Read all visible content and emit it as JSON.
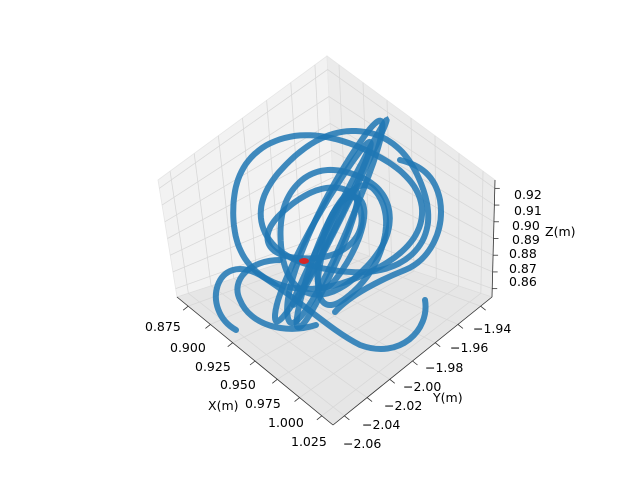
{
  "chart_data": {
    "type": "scatter",
    "projection": "3d",
    "title": "",
    "xlabel": "X(m)",
    "ylabel": "Y(m)",
    "zlabel": "Z(m)",
    "x_ticks": [
      "0.875",
      "0.900",
      "0.925",
      "0.950",
      "0.975",
      "1.000",
      "1.025"
    ],
    "y_ticks": [
      "−2.06",
      "−2.04",
      "−2.02",
      "−2.00",
      "−1.98",
      "−1.96",
      "−1.94"
    ],
    "z_ticks": [
      "0.86",
      "0.87",
      "0.88",
      "0.89",
      "0.90",
      "0.91",
      "0.92"
    ],
    "xlim": [
      0.865,
      1.03
    ],
    "ylim": [
      -2.065,
      -1.935
    ],
    "zlim": [
      0.855,
      0.925
    ],
    "grid": true,
    "series": [
      {
        "color": "#1f77b4",
        "marker": "o",
        "description_points": "dense trajectory of looping circles around center (0.95, -2.00, 0.885), radius ~0.05 m in X and Y",
        "center": [
          0.95,
          -2.0,
          0.885
        ],
        "radius_xy": [
          0.05,
          0.05
        ],
        "z_range": [
          0.86,
          0.915
        ]
      },
      {
        "color": "#d62728",
        "marker": "o",
        "points": [
          [
            0.95,
            -2.0,
            0.885
          ]
        ]
      }
    ]
  }
}
